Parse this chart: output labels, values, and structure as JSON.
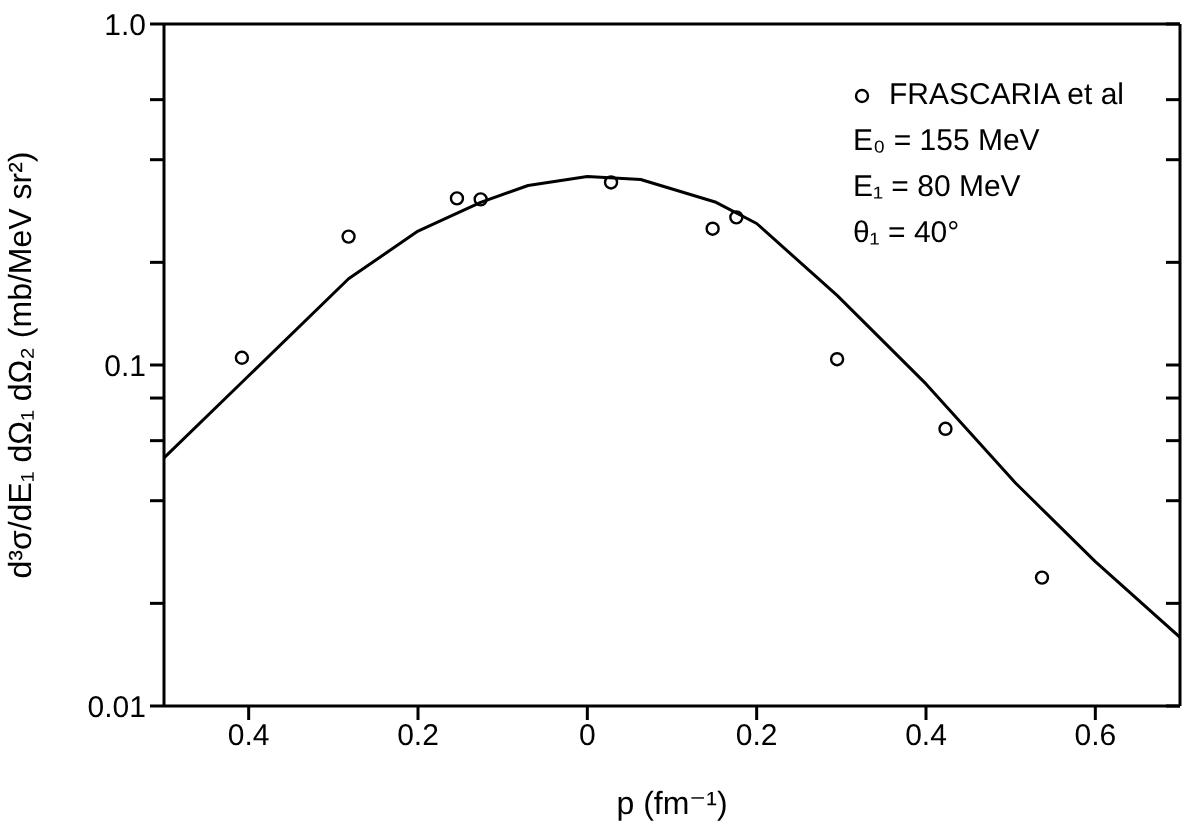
{
  "chart_data": {
    "type": "scatter",
    "xlabel": "p (fm⁻¹)",
    "ylabel": "d³σ/dE₁ dΩ₁ dΩ₂ (mb/MeV sr²)",
    "xlim": [
      -0.5,
      0.7
    ],
    "xticks": [
      {
        "value": -0.4,
        "label": "0.4"
      },
      {
        "value": -0.2,
        "label": "0.2"
      },
      0,
      0.2,
      0.4,
      0.6
    ],
    "ylim": [
      0.01,
      1
    ],
    "log": "y",
    "yticks": [
      {
        "value": 0.01,
        "label": "0.01"
      },
      {
        "value": 0.02,
        "label": null
      },
      {
        "value": 0.04,
        "label": null
      },
      {
        "value": 0.06,
        "label": null
      },
      {
        "value": 0.08,
        "label": null
      },
      {
        "value": 0.1,
        "label": "0.1"
      },
      {
        "value": 0.2,
        "label": null
      },
      {
        "value": 0.4,
        "label": null
      },
      {
        "value": 0.6,
        "label": null
      },
      {
        "value": 1,
        "label": "1.0"
      }
    ],
    "grid": false,
    "legend": "top right",
    "series": [
      {
        "name": "FRASCARIA et al",
        "marker": "circle",
        "color": "#000000",
        "x": [
          -0.408,
          -0.282,
          -0.154,
          -0.126,
          0.028,
          0.148,
          0.176,
          0.295,
          0.423,
          0.537
        ],
        "values": [
          0.105,
          0.238,
          0.308,
          0.306,
          0.343,
          0.251,
          0.271,
          0.104,
          0.065,
          0.0238
        ]
      },
      {
        "type": "line",
        "marker": "none",
        "color": "#000000",
        "x": [
          -0.5,
          -0.4,
          -0.282,
          -0.2,
          -0.126,
          -0.07,
          0,
          0.063,
          0.152,
          0.2,
          0.295,
          0.4,
          0.506,
          0.6,
          0.7
        ],
        "values": [
          0.0534,
          0.093,
          0.179,
          0.247,
          0.3,
          0.336,
          0.357,
          0.35,
          0.3,
          0.26,
          0.16,
          0.088,
          0.045,
          0.0265,
          0.0159
        ]
      }
    ],
    "annotations": [
      "E₀ = 155 MeV",
      "E₁ = 80 MeV",
      "θ₁ = 40°"
    ]
  }
}
